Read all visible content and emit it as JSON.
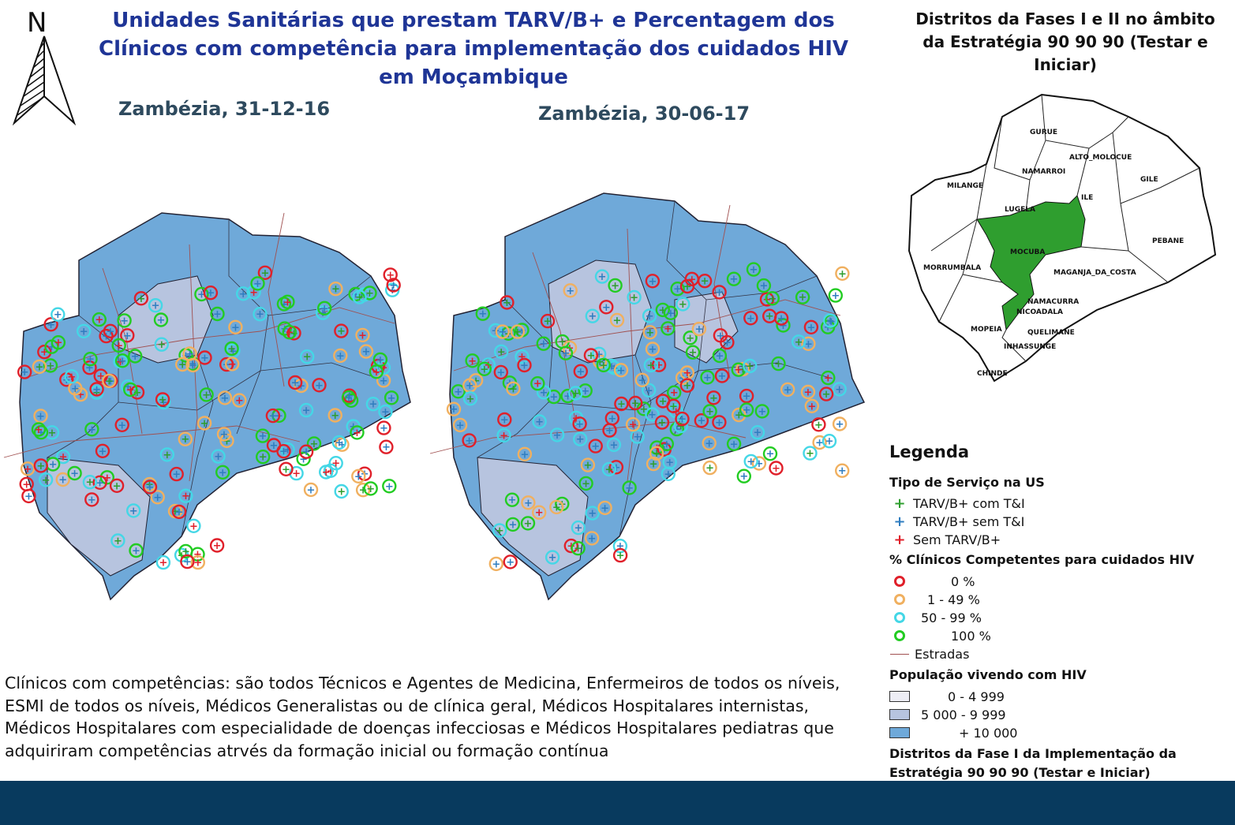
{
  "title": "Unidades Sanitárias que prestam TARV/B+ e Percentagem dos Clínicos com competência para implementação dos cuidados HIV em Moçambique",
  "north_arrow": {
    "label": "N",
    "icon": "north-arrow-icon"
  },
  "maps": [
    {
      "subtitle": "Zambézia, 31-12-16"
    },
    {
      "subtitle": "Zambézia, 30-06-17"
    }
  ],
  "inset": {
    "title": "Distritos da Fases I e II no âmbito da Estratégia 90 90 90 (Testar e Iniciar)",
    "districts": [
      "GURUE",
      "ALTO_MOLOCUE",
      "NAMARROI",
      "GILE",
      "MILANGE",
      "ILE",
      "LUGELA",
      "PEBANE",
      "MOCUBA",
      "MORRUMBALA",
      "MAGANJA_DA_COSTA",
      "NAMACURRA",
      "NICOADALA",
      "MOPEIA",
      "QUELIMANE",
      "INHASSUNGE",
      "CHINDE"
    ],
    "highlighted": [
      "MOCUBA",
      "NAMACURRA",
      "NICOADALA",
      "QUELIMANE"
    ]
  },
  "legend": {
    "title": "Legenda",
    "service_heading": "Tipo de Serviço na US",
    "service_items": [
      {
        "label": "TARV/B+ com T&I",
        "color": "#2e9e2e"
      },
      {
        "label": "TARV/B+ sem T&I",
        "color": "#2f7dc0"
      },
      {
        "label": "Sem TARV/B+",
        "color": "#e0202a"
      }
    ],
    "pct_heading": "% Clínicos Competentes para cuidados HIV",
    "pct_items": [
      {
        "label": "0 %",
        "color": "#e0202a"
      },
      {
        "label": "1 - 49 %",
        "color": "#f0b060"
      },
      {
        "label": "50 - 99 %",
        "color": "#44d7e6"
      },
      {
        "label": "100 %",
        "color": "#22cc22"
      }
    ],
    "roads_label": "Estradas",
    "roads_color": "#a05050",
    "pop_heading": "População vivendo com HIV",
    "pop_items": [
      {
        "label": "0 -  4 999",
        "color": "#eeeef5"
      },
      {
        "label": "5 000 -  9 999",
        "color": "#b7c4df"
      },
      {
        "label": "+ 10 000",
        "color": "#6fa9d9"
      }
    ],
    "phase_heading": "Distritos da Fase I da Implementação da Estratégia 90 90 90 (Testar e Iniciar)"
  },
  "note": "Clínicos com competências: são todos Técnicos e Agentes de Medicina, Enfermeiros de todos os níveis, ESMI de todos os níveis, Médicos Generalistas ou de clínica geral, Médicos Hospitalares internistas, Médicos Hospitalares com especialidade de doenças infecciosas e Médicos Hospitalares pediatras que adquiriram competências atrvés da formação inicial ou formação contínua"
}
